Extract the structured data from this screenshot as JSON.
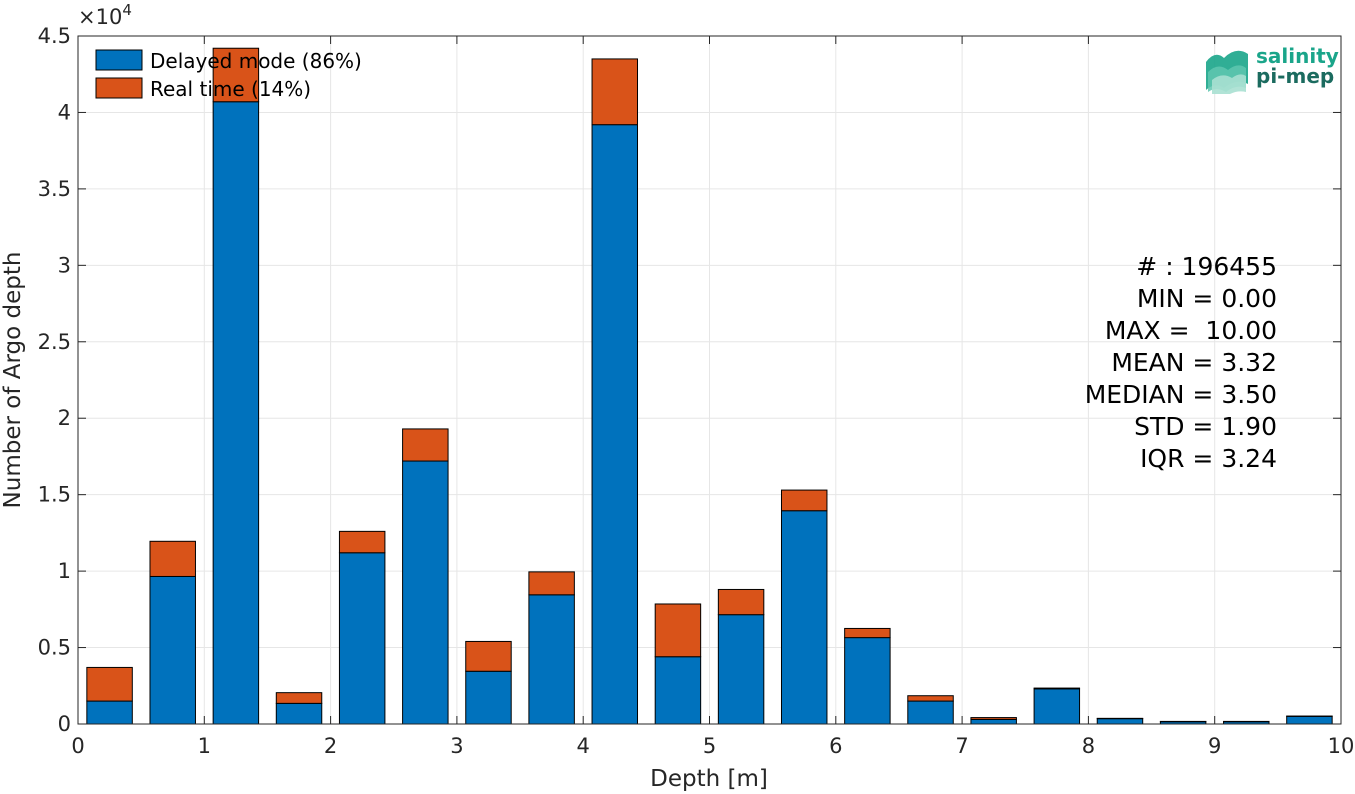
{
  "chart_data": {
    "type": "bar",
    "stacked": true,
    "xlabel": "Depth [m]",
    "ylabel": "Number of Argo depth",
    "xlim": [
      0,
      10
    ],
    "ylim": [
      0,
      45000
    ],
    "y_exponent_label": "×10",
    "y_exponent_power": "4",
    "x_ticks": [
      0,
      1,
      2,
      3,
      4,
      5,
      6,
      7,
      8,
      9,
      10
    ],
    "y_ticks": [
      0,
      5000,
      10000,
      15000,
      20000,
      25000,
      30000,
      35000,
      40000,
      45000
    ],
    "y_tick_labels": [
      "0",
      "0.5",
      "1",
      "1.5",
      "2",
      "2.5",
      "3",
      "3.5",
      "4",
      "4.5"
    ],
    "grid": true,
    "legend_position": "top-left",
    "x": [
      0.25,
      0.75,
      1.25,
      1.75,
      2.25,
      2.75,
      3.25,
      3.75,
      4.25,
      4.75,
      5.25,
      5.75,
      6.25,
      6.75,
      7.25,
      7.75,
      8.25,
      8.75,
      9.25,
      9.75
    ],
    "bar_width": 0.36,
    "series": [
      {
        "name": "Delayed mode (86%)",
        "color": "#0072BD",
        "values": [
          1500,
          9650,
          40700,
          1350,
          11200,
          17200,
          3450,
          8450,
          39200,
          4400,
          7150,
          13950,
          5650,
          1500,
          300,
          2300,
          350,
          150,
          150,
          500
        ]
      },
      {
        "name": "Real time (14%)",
        "color": "#D95319",
        "values": [
          2200,
          2300,
          3500,
          700,
          1400,
          2100,
          1950,
          1500,
          4300,
          3450,
          1650,
          1350,
          600,
          350,
          120,
          50,
          20,
          20,
          20,
          20
        ]
      }
    ],
    "stats": [
      "# : 196455",
      "MIN = 0.00",
      "MAX =  10.00",
      "MEAN = 3.32",
      "MEDIAN = 3.50",
      "STD = 1.90",
      "IQR = 3.24"
    ]
  },
  "logo": {
    "line1": "salinity",
    "line2": "pi-mep",
    "color1": "#1aa58a",
    "color2": "#1b6b5f"
  }
}
